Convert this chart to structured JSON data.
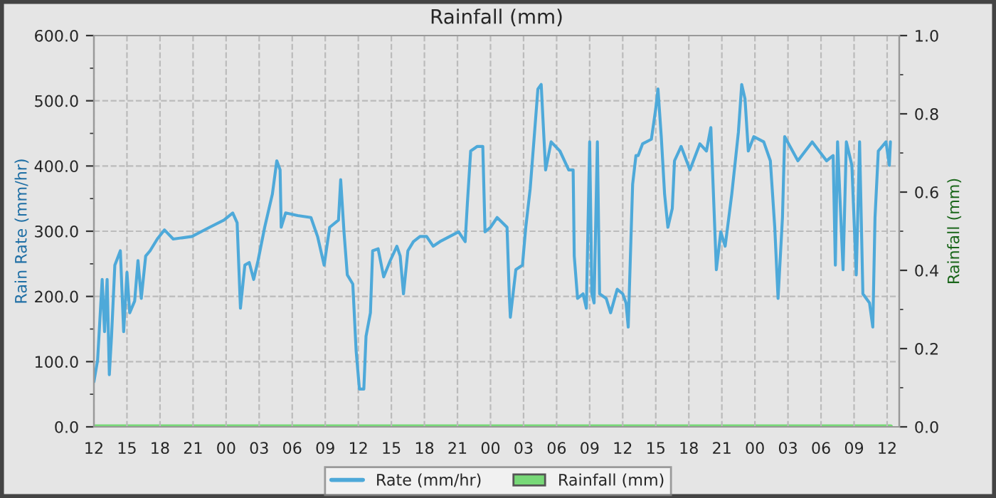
{
  "chart_data": {
    "type": "line",
    "title": "Rainfall (mm)",
    "ylabel": "Rain Rate (mm/hr)",
    "y2label": "Rainfall (mm)",
    "xlim": [
      "2000-01-01T12:00",
      "2000-01-04T13:06"
    ],
    "xticks": [
      {
        "value": "2000-01-01T12:00",
        "label": "12"
      },
      {
        "value": "2000-01-01T15:00",
        "label": "15"
      },
      {
        "value": "2000-01-01T18:00",
        "label": "18"
      },
      {
        "value": "2000-01-01T21:00",
        "label": "21"
      },
      {
        "value": "2000-01-02T00:00",
        "label": "00"
      },
      {
        "value": "2000-01-02T03:00",
        "label": "03"
      },
      {
        "value": "2000-01-02T06:00",
        "label": "06"
      },
      {
        "value": "2000-01-02T09:00",
        "label": "09"
      },
      {
        "value": "2000-01-02T12:00",
        "label": "12"
      },
      {
        "value": "2000-01-02T15:00",
        "label": "15"
      },
      {
        "value": "2000-01-02T18:00",
        "label": "18"
      },
      {
        "value": "2000-01-02T21:00",
        "label": "21"
      },
      {
        "value": "2000-01-03T00:00",
        "label": "00"
      },
      {
        "value": "2000-01-03T03:00",
        "label": "03"
      },
      {
        "value": "2000-01-03T06:00",
        "label": "06"
      },
      {
        "value": "2000-01-03T09:00",
        "label": "09"
      },
      {
        "value": "2000-01-03T12:00",
        "label": "12"
      },
      {
        "value": "2000-01-03T15:00",
        "label": "15"
      },
      {
        "value": "2000-01-03T18:00",
        "label": "18"
      },
      {
        "value": "2000-01-03T21:00",
        "label": "21"
      },
      {
        "value": "2000-01-04T00:00",
        "label": "00"
      },
      {
        "value": "2000-01-04T03:00",
        "label": "03"
      },
      {
        "value": "2000-01-04T06:00",
        "label": "06"
      },
      {
        "value": "2000-01-04T09:00",
        "label": "09"
      },
      {
        "value": "2000-01-04T12:00",
        "label": "12"
      }
    ],
    "ylim": [
      0,
      600
    ],
    "yticks": [
      {
        "value": 0,
        "label": "0.0"
      },
      {
        "value": 100,
        "label": "100.0"
      },
      {
        "value": 200,
        "label": "200.0"
      },
      {
        "value": 300,
        "label": "300.0"
      },
      {
        "value": 400,
        "label": "400.0"
      },
      {
        "value": 500,
        "label": "500.0"
      },
      {
        "value": 600,
        "label": "600.0"
      }
    ],
    "y2lim": [
      0,
      1
    ],
    "y2ticks": [
      {
        "value": 0,
        "label": "0.0"
      },
      {
        "value": 0.2,
        "label": "0.2"
      },
      {
        "value": 0.4,
        "label": "0.4"
      },
      {
        "value": 0.6,
        "label": "0.6"
      },
      {
        "value": 0.8,
        "label": "0.8"
      },
      {
        "value": 1,
        "label": "1.0"
      }
    ],
    "grid": true,
    "legend": "bottom",
    "series": [
      {
        "name": "Rate (mm/hr)",
        "color": "#4ea9d9",
        "x": [
          "2000-01-01T12:00",
          "2000-01-01T12:20",
          "2000-01-01T12:45",
          "2000-01-01T12:58",
          "2000-01-01T13:12",
          "2000-01-01T13:24",
          "2000-01-01T13:36",
          "2000-01-01T13:54",
          "2000-01-01T14:24",
          "2000-01-01T14:42",
          "2000-01-01T15:00",
          "2000-01-01T15:15",
          "2000-01-01T15:42",
          "2000-01-01T16:00",
          "2000-01-01T16:18",
          "2000-01-01T16:42",
          "2000-01-01T17:06",
          "2000-01-01T17:45",
          "2000-01-01T18:24",
          "2000-01-01T19:12",
          "2000-01-01T20:54",
          "2000-01-01T22:30",
          "2000-01-01T23:48",
          "2000-01-02T00:36",
          "2000-01-02T01:00",
          "2000-01-02T01:18",
          "2000-01-02T01:42",
          "2000-01-02T02:06",
          "2000-01-02T02:30",
          "2000-01-02T02:54",
          "2000-01-02T03:30",
          "2000-01-02T04:12",
          "2000-01-02T04:36",
          "2000-01-02T04:54",
          "2000-01-02T05:00",
          "2000-01-02T05:24",
          "2000-01-02T06:30",
          "2000-01-02T07:42",
          "2000-01-02T08:18",
          "2000-01-02T08:54",
          "2000-01-02T09:24",
          "2000-01-02T10:12",
          "2000-01-02T10:24",
          "2000-01-02T10:42",
          "2000-01-02T11:00",
          "2000-01-02T11:30",
          "2000-01-02T11:48",
          "2000-01-02T12:06",
          "2000-01-02T12:30",
          "2000-01-02T12:42",
          "2000-01-02T13:06",
          "2000-01-02T13:18",
          "2000-01-02T13:48",
          "2000-01-02T14:18",
          "2000-01-02T14:54",
          "2000-01-02T15:30",
          "2000-01-02T15:48",
          "2000-01-02T16:06",
          "2000-01-02T16:30",
          "2000-01-02T17:00",
          "2000-01-02T17:36",
          "2000-01-02T18:12",
          "2000-01-02T18:48",
          "2000-01-02T19:24",
          "2000-01-02T20:18",
          "2000-01-02T21:06",
          "2000-01-02T21:42",
          "2000-01-02T21:54",
          "2000-01-02T22:12",
          "2000-01-02T22:48",
          "2000-01-02T23:18",
          "2000-01-02T23:30",
          "2000-01-03T00:00",
          "2000-01-03T00:36",
          "2000-01-03T01:30",
          "2000-01-03T01:42",
          "2000-01-03T01:48",
          "2000-01-03T02:18",
          "2000-01-03T02:54",
          "2000-01-03T03:12",
          "2000-01-03T03:36",
          "2000-01-03T04:00",
          "2000-01-03T04:18",
          "2000-01-03T04:36",
          "2000-01-03T04:48",
          "2000-01-03T05:00",
          "2000-01-03T05:30",
          "2000-01-03T06:18",
          "2000-01-03T07:06",
          "2000-01-03T07:30",
          "2000-01-03T07:36",
          "2000-01-03T07:54",
          "2000-01-03T08:24",
          "2000-01-03T08:42",
          "2000-01-03T09:00",
          "2000-01-03T09:12",
          "2000-01-03T09:24",
          "2000-01-03T09:42",
          "2000-01-03T09:54",
          "2000-01-03T10:30",
          "2000-01-03T10:54",
          "2000-01-03T11:30",
          "2000-01-03T12:00",
          "2000-01-03T12:18",
          "2000-01-03T12:30",
          "2000-01-03T12:54",
          "2000-01-03T13:12",
          "2000-01-03T13:24",
          "2000-01-03T13:48",
          "2000-01-03T14:36",
          "2000-01-03T15:00",
          "2000-01-03T15:12",
          "2000-01-03T15:30",
          "2000-01-03T15:48",
          "2000-01-03T16:06",
          "2000-01-03T16:30",
          "2000-01-03T16:42",
          "2000-01-03T17:18",
          "2000-01-03T18:06",
          "2000-01-03T19:00",
          "2000-01-03T19:36",
          "2000-01-03T20:00",
          "2000-01-03T20:12",
          "2000-01-03T20:30",
          "2000-01-03T20:54",
          "2000-01-03T21:18",
          "2000-01-03T21:54",
          "2000-01-03T22:30",
          "2000-01-03T22:48",
          "2000-01-03T23:06",
          "2000-01-03T23:24",
          "2000-01-03T23:54",
          "2000-01-04T00:48",
          "2000-01-04T01:24",
          "2000-01-04T01:48",
          "2000-01-04T02:06",
          "2000-01-04T02:30",
          "2000-01-04T02:42",
          "2000-01-04T03:54",
          "2000-01-04T05:12",
          "2000-01-04T06:30",
          "2000-01-04T07:06",
          "2000-01-04T07:18",
          "2000-01-04T07:30",
          "2000-01-04T08:00",
          "2000-01-04T08:18",
          "2000-01-04T08:48",
          "2000-01-04T09:12",
          "2000-01-04T09:30",
          "2000-01-04T09:48",
          "2000-01-04T10:24",
          "2000-01-04T10:42",
          "2000-01-04T10:54",
          "2000-01-04T11:12",
          "2000-01-04T11:54",
          "2000-01-04T12:12",
          "2000-01-04T12:18"
        ],
        "values": [
          69,
          102,
          226,
          146,
          226,
          80,
          139,
          248,
          270,
          146,
          237,
          175,
          193,
          255,
          197,
          262,
          270,
          288,
          302,
          288,
          292,
          306,
          317,
          328,
          313,
          182,
          248,
          252,
          226,
          255,
          306,
          357,
          408,
          394,
          306,
          328,
          324,
          321,
          292,
          248,
          306,
          317,
          379,
          299,
          233,
          219,
          117,
          58,
          58,
          139,
          175,
          270,
          273,
          230,
          255,
          277,
          262,
          204,
          270,
          284,
          292,
          292,
          277,
          284,
          292,
          299,
          284,
          343,
          423,
          430,
          430,
          299,
          306,
          321,
          306,
          204,
          168,
          241,
          248,
          306,
          365,
          452,
          518,
          525,
          459,
          394,
          437,
          423,
          394,
          394,
          262,
          197,
          204,
          182,
          437,
          204,
          190,
          437,
          204,
          197,
          175,
          211,
          204,
          190,
          153,
          372,
          416,
          416,
          434,
          441,
          488,
          518,
          445,
          357,
          306,
          335,
          408,
          430,
          394,
          434,
          423,
          459,
          372,
          241,
          299,
          277,
          357,
          452,
          525,
          503,
          423,
          445,
          437,
          408,
          306,
          197,
          321,
          445,
          408,
          437,
          408,
          416,
          248,
          437,
          241,
          437,
          401,
          233,
          437,
          204,
          190,
          153,
          321,
          423,
          437,
          401,
          437
        ]
      },
      {
        "name": "Rainfall (mm)",
        "type": "line",
        "axis": "y2",
        "color": "#77d877",
        "x": [
          "2000-01-01T12:00",
          "2000-01-04T12:18"
        ],
        "values": [
          0,
          0
        ]
      }
    ]
  }
}
